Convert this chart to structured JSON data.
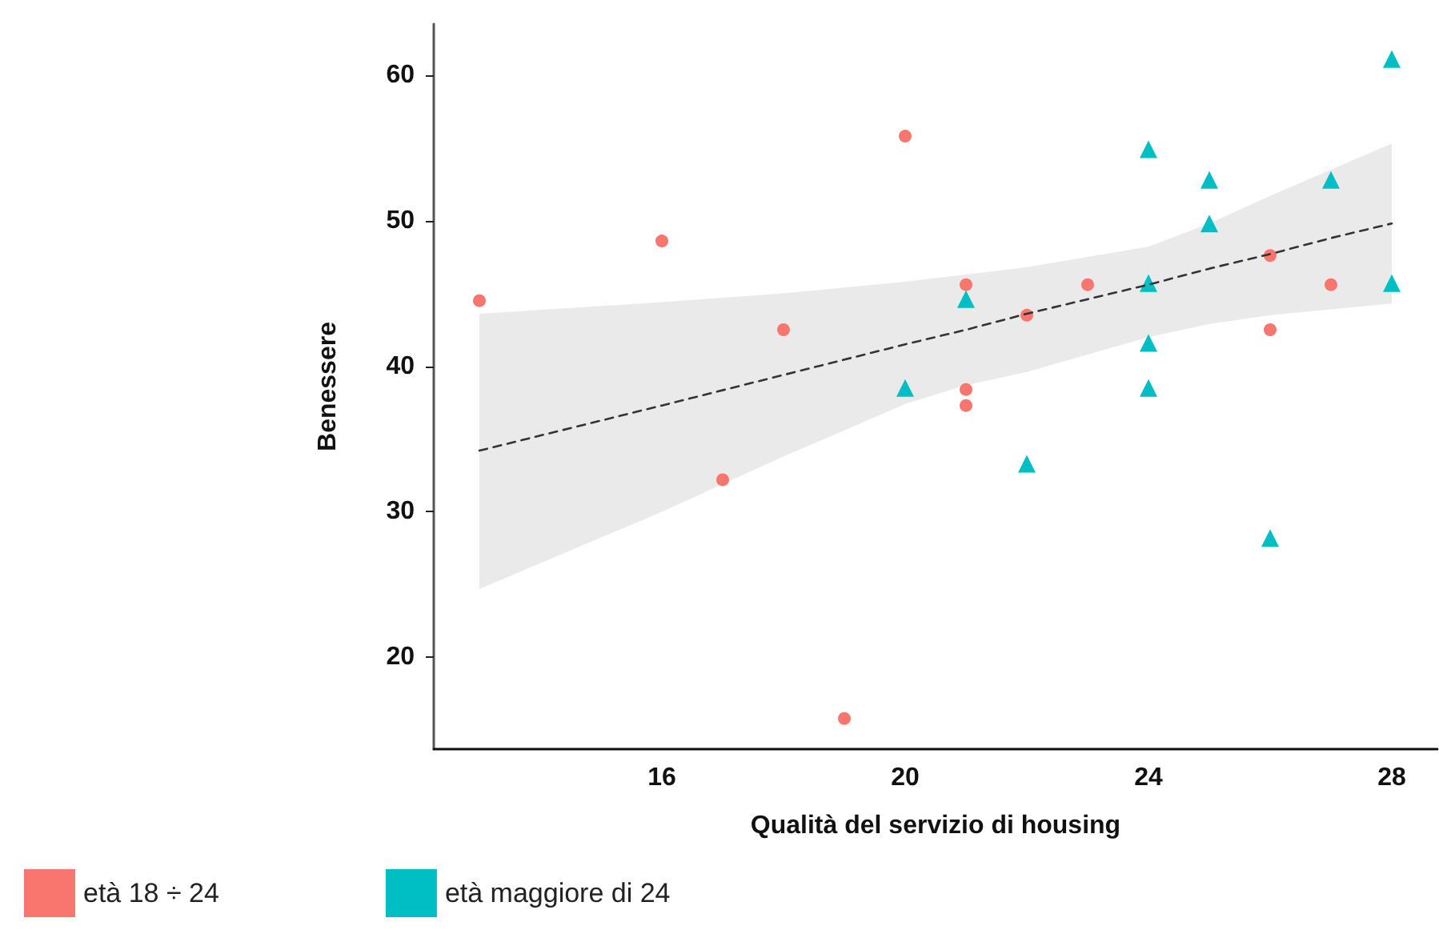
{
  "chart_data": {
    "type": "scatter",
    "xlabel": "Qualità del servizio di housing",
    "ylabel": "Benessere",
    "xlim": [
      12.25,
      28.75
    ],
    "xticks": [
      16,
      20,
      24,
      28
    ],
    "ylim": [
      13.7,
      63.5
    ],
    "yticks": [
      20,
      30,
      40,
      50,
      60
    ],
    "legend": "bottom left",
    "series": [
      {
        "name": "età 18 ÷ 24",
        "color": "#f8766d",
        "marker": "circle",
        "x": [
          13,
          16,
          17,
          18,
          19,
          20,
          21,
          21,
          21,
          22,
          23,
          26,
          26,
          27
        ],
        "values": [
          44.5,
          48.6,
          32.2,
          42.5,
          15.8,
          55.8,
          45.6,
          38.4,
          37.3,
          43.5,
          45.6,
          47.6,
          42.5,
          45.6
        ]
      },
      {
        "name": "età maggiore di 24",
        "color": "#00bfc4",
        "marker": "triangle",
        "x": [
          20,
          21,
          22,
          24,
          24,
          24,
          24,
          25,
          25,
          26,
          27,
          28,
          28
        ],
        "values": [
          38.5,
          44.6,
          33.3,
          54.9,
          45.7,
          41.6,
          38.5,
          52.8,
          49.8,
          28.2,
          52.8,
          61.1,
          45.7
        ]
      },
      {
        "type": "line",
        "color": "#333333",
        "line_style": "dashed",
        "marker": "none",
        "x": [
          13,
          16,
          18,
          20,
          21,
          22,
          24,
          25,
          26,
          27,
          28
        ],
        "values": [
          34.2,
          37.3,
          39.4,
          41.5,
          42.5,
          43.6,
          45.6,
          46.7,
          47.7,
          48.8,
          49.8
        ],
        "lower": [
          24.7,
          30.0,
          33.8,
          37.4,
          38.7,
          39.6,
          42.0,
          42.9,
          43.5,
          43.9,
          44.3
        ],
        "upper": [
          43.6,
          44.4,
          45.0,
          45.8,
          46.3,
          46.8,
          48.2,
          49.8,
          51.7,
          53.5,
          55.3
        ]
      }
    ]
  }
}
